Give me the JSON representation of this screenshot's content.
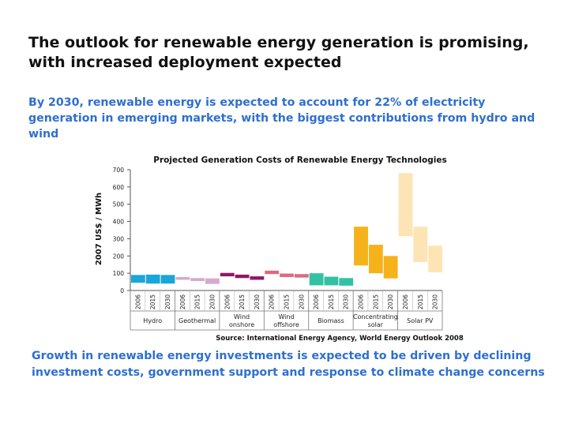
{
  "slide": {
    "title": "The outlook for renewable energy generation is promising, with increased deployment expected",
    "subtitle": "By 2030, renewable energy is expected to account for 22% of electricity generation in emerging markets, with the biggest contributions from hydro and wind",
    "footer": "Growth in renewable energy investments is expected to be driven by declining investment costs, government support and response to climate change concerns"
  },
  "chart_data": {
    "type": "bar",
    "subtype": "floating-range",
    "title": "Projected Generation Costs of Renewable Energy Technologies",
    "ylabel": "2007 US$ / MWh",
    "xlabel": "",
    "ylim": [
      0,
      700
    ],
    "yticks": [
      0,
      100,
      200,
      300,
      400,
      500,
      600,
      700
    ],
    "grid": false,
    "source": "Source: International Energy Agency, World Energy Outlook 2008",
    "groups": [
      {
        "name": "Hydro",
        "color": "#1aa6d8",
        "years": [
          "2006",
          "2015",
          "2030"
        ],
        "ranges": [
          [
            45,
            90
          ],
          [
            40,
            92
          ],
          [
            40,
            90
          ]
        ]
      },
      {
        "name": "Geothermal",
        "color": "#d6a9ce",
        "years": [
          "2006",
          "2015",
          "2030"
        ],
        "ranges": [
          [
            62,
            78
          ],
          [
            55,
            72
          ],
          [
            38,
            70
          ]
        ]
      },
      {
        "name": "Wind onshore",
        "color": "#8e1a66",
        "years": [
          "2006",
          "2015",
          "2030"
        ],
        "ranges": [
          [
            82,
            102
          ],
          [
            72,
            92
          ],
          [
            62,
            82
          ]
        ]
      },
      {
        "name": "Wind offshore",
        "color": "#dc6a80",
        "years": [
          "2006",
          "2015",
          "2030"
        ],
        "ranges": [
          [
            95,
            115
          ],
          [
            78,
            98
          ],
          [
            75,
            95
          ]
        ]
      },
      {
        "name": "Biomass",
        "color": "#33c1a3",
        "years": [
          "2006",
          "2015",
          "2030"
        ],
        "ranges": [
          [
            30,
            100
          ],
          [
            30,
            80
          ],
          [
            28,
            72
          ]
        ]
      },
      {
        "name": "Concentrating solar",
        "color": "#f5b21a",
        "years": [
          "2006",
          "2015",
          "2030"
        ],
        "ranges": [
          [
            145,
            370
          ],
          [
            100,
            265
          ],
          [
            70,
            200
          ]
        ]
      },
      {
        "name": "Solar PV",
        "color": "#fde4b5",
        "years": [
          "2006",
          "2015",
          "2030"
        ],
        "ranges": [
          [
            315,
            680
          ],
          [
            165,
            370
          ],
          [
            105,
            260
          ]
        ]
      }
    ]
  }
}
